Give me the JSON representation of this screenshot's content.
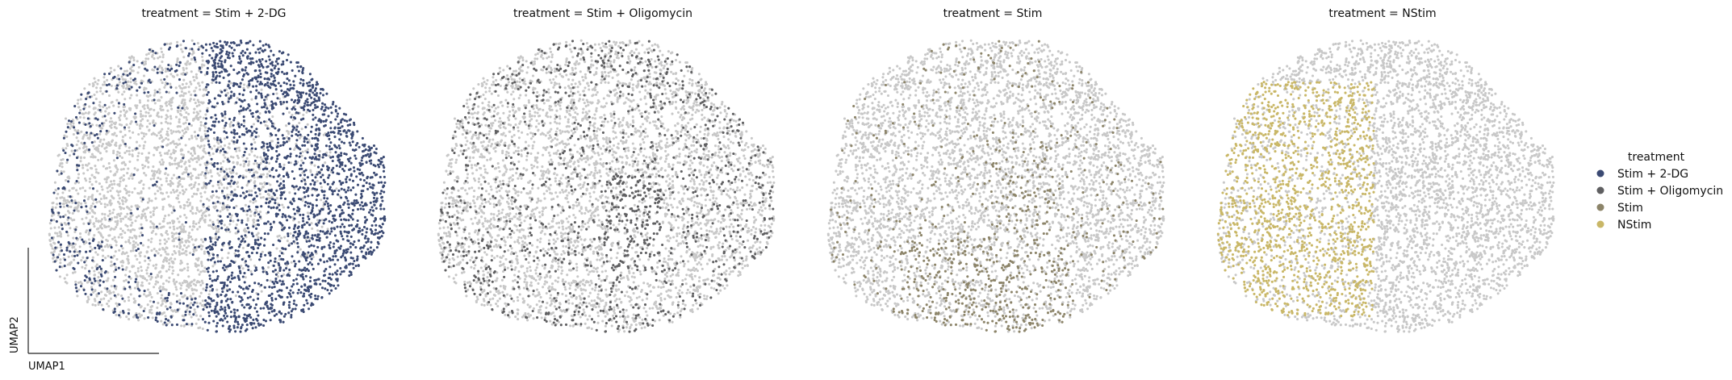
{
  "chart_data": [
    {
      "type": "scatter",
      "title": "treatment = Stim + 2-DG",
      "xlabel": "UMAP1",
      "ylabel": "UMAP2",
      "highlight_group": "Stim + 2-DG",
      "highlight_color": "#3b4a73",
      "background_color": "#c8c8c8",
      "highlight_region": "right",
      "highlight_share": 0.5
    },
    {
      "type": "scatter",
      "title": "treatment = Stim + Oligomycin",
      "xlabel": "",
      "ylabel": "",
      "highlight_group": "Stim + Oligomycin",
      "highlight_color": "#5f5f61",
      "background_color": "#c8c8c8",
      "highlight_region": "scattered",
      "highlight_share": 0.2
    },
    {
      "type": "scatter",
      "title": "treatment = Stim",
      "xlabel": "",
      "ylabel": "",
      "highlight_group": "Stim",
      "highlight_color": "#8c8469",
      "background_color": "#c8c8c8",
      "highlight_region": "bottom",
      "highlight_share": 0.2
    },
    {
      "type": "scatter",
      "title": "treatment = NStim",
      "xlabel": "",
      "ylabel": "",
      "highlight_group": "NStim",
      "highlight_color": "#c9b767",
      "background_color": "#c8c8c8",
      "highlight_region": "left",
      "highlight_share": 0.3
    }
  ],
  "legend": {
    "title": "treatment",
    "placement": "right",
    "items": [
      {
        "label": "Stim + 2-DG",
        "color": "#3b4a73"
      },
      {
        "label": "Stim + Oligomycin",
        "color": "#5f5f61"
      },
      {
        "label": "Stim",
        "color": "#8c8469"
      },
      {
        "label": "NStim",
        "color": "#c9b767"
      }
    ]
  }
}
